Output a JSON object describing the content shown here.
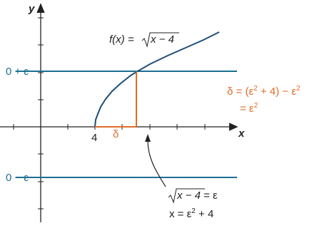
{
  "axes": {
    "x_label": "x",
    "y_label": "y",
    "x_tick_label": "4"
  },
  "bounds": {
    "upper": "0 + ε",
    "lower": "0 − ε"
  },
  "function": {
    "name": "f(x) = ",
    "radicand": "x − 4"
  },
  "delta": {
    "label": "δ",
    "line1": [
      "δ = (ε",
      "2",
      " + 4) − ε",
      "2"
    ],
    "line2": [
      "= ε",
      "2"
    ]
  },
  "solution": {
    "line1": {
      "radicand": "x − 4",
      "rest": " = ε"
    },
    "line2": [
      "x = ε",
      "2",
      " + 4"
    ]
  }
}
